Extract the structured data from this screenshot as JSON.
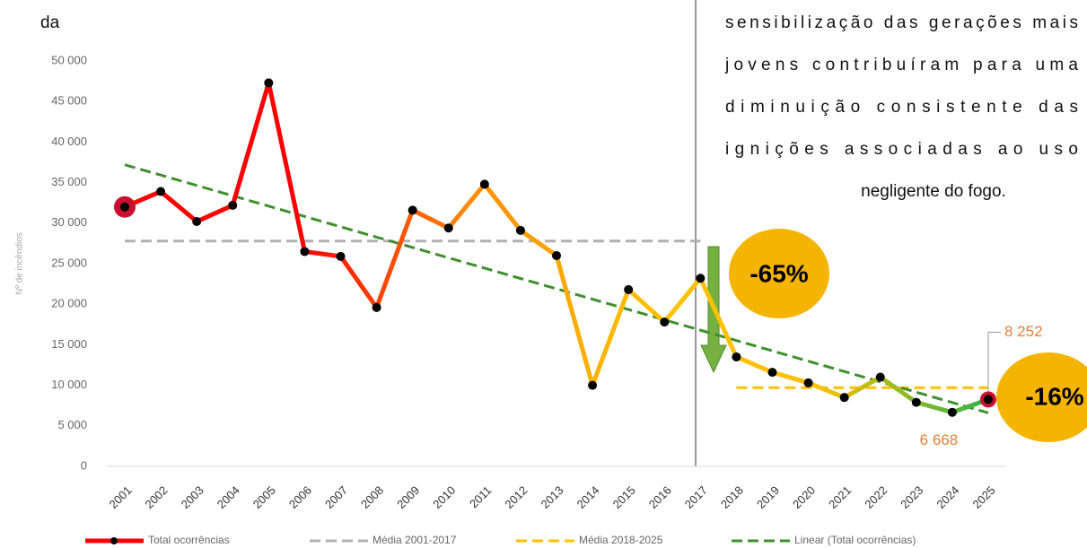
{
  "document": {
    "fragment": "da",
    "paragraph": [
      "sensibilização das gerações mais",
      "jovens contribuíram para uma",
      "diminuição consistente das",
      "ignições associadas ao uso",
      "negligente do fogo."
    ]
  },
  "chart_data": {
    "type": "line",
    "y_label": "Nº de incêndios",
    "categories": [
      "2001",
      "2002",
      "2003",
      "2004",
      "2005",
      "2006",
      "2007",
      "2008",
      "2009",
      "2010",
      "2011",
      "2012",
      "2013",
      "2014",
      "2015",
      "2016",
      "2017",
      "2018",
      "2019",
      "2020",
      "2021",
      "2022",
      "2023",
      "2024",
      "2025"
    ],
    "series": [
      {
        "name": "Total ocorrências",
        "gradient": [
          "#ff0000",
          "#ff0000",
          "#ff8c00",
          "#ffc000",
          "#ffc000",
          "#2eb34a"
        ],
        "values": [
          32000,
          33900,
          30200,
          32200,
          47300,
          26500,
          25900,
          19600,
          31600,
          29400,
          34800,
          29100,
          26000,
          10000,
          21800,
          17800,
          23200,
          13500,
          11600,
          10300,
          8500,
          11000,
          7900,
          6668,
          8252
        ],
        "value_labels": [
          null,
          null,
          null,
          null,
          null,
          null,
          null,
          null,
          null,
          null,
          null,
          null,
          null,
          null,
          null,
          null,
          null,
          null,
          null,
          null,
          null,
          null,
          null,
          "6 668",
          "8 252"
        ]
      },
      {
        "name": "Média 2001-2017",
        "color": "#b0b0b0",
        "dash": true,
        "values": [
          27800,
          27800,
          27800,
          27800,
          27800,
          27800,
          27800,
          27800,
          27800,
          27800,
          27800,
          27800,
          27800,
          27800,
          27800,
          27800,
          27800,
          null,
          null,
          null,
          null,
          null,
          null,
          null,
          null
        ]
      },
      {
        "name": "Média 2018-2025",
        "color": "#ffc000",
        "dash": true,
        "values": [
          null,
          null,
          null,
          null,
          null,
          null,
          null,
          null,
          null,
          null,
          null,
          null,
          null,
          null,
          null,
          null,
          null,
          9700,
          9700,
          9700,
          9700,
          9700,
          9700,
          9700,
          9700
        ]
      },
      {
        "name": "Linear (Total ocorrências)",
        "color": "#3f8f2f",
        "dash": true,
        "values": [
          37200,
          35925,
          34650,
          33375,
          32100,
          30825,
          29550,
          28275,
          27000,
          25725,
          24450,
          23175,
          21900,
          20625,
          19350,
          18075,
          16800,
          15525,
          14250,
          12975,
          11700,
          10425,
          9150,
          7875,
          6600
        ]
      }
    ],
    "annotations": [
      "-65%",
      "-16%"
    ],
    "ylim": [
      0,
      50000
    ],
    "yticks": [
      0,
      {
        "value": 5000,
        "label": "5 000"
      },
      {
        "value": 10000,
        "label": "10 000"
      },
      {
        "value": 15000,
        "label": "15 000"
      },
      {
        "value": 20000,
        "label": "20 000"
      },
      {
        "value": 25000,
        "label": "25 000"
      },
      {
        "value": 30000,
        "label": "30 000"
      },
      {
        "value": 35000,
        "label": "35 000"
      },
      {
        "value": 40000,
        "label": "40 000"
      },
      {
        "value": 45000,
        "label": "45 000"
      },
      {
        "value": 50000,
        "label": "50 000"
      }
    ]
  }
}
